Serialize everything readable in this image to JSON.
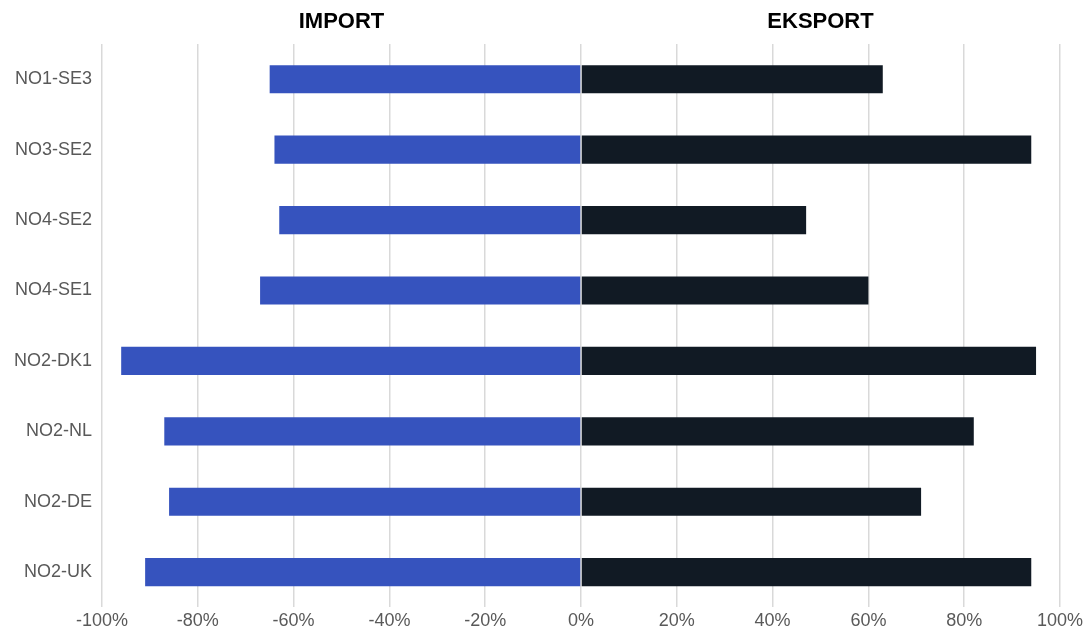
{
  "chart_data": {
    "type": "bar",
    "orientation": "horizontal",
    "stacked": true,
    "categories": [
      "NO1-SE3",
      "NO3-SE2",
      "NO4-SE2",
      "NO4-SE1",
      "NO2-DK1",
      "NO2-NL",
      "NO2-DE",
      "NO2-UK"
    ],
    "series": [
      {
        "name": "IMPORT",
        "color": "#3653be",
        "values": [
          -65,
          -64,
          -63,
          -67,
          -96,
          -87,
          -86,
          -91
        ]
      },
      {
        "name": "EKSPORT",
        "color": "#111a24",
        "values": [
          63,
          94,
          47,
          60,
          95,
          82,
          71,
          94
        ]
      }
    ],
    "xlim": [
      -100,
      100
    ],
    "xticks": [
      {
        "value": -100,
        "label": "-100%"
      },
      {
        "value": -80,
        "label": "-80%"
      },
      {
        "value": -60,
        "label": "-60%"
      },
      {
        "value": -40,
        "label": "-40%"
      },
      {
        "value": -20,
        "label": "-20%"
      },
      {
        "value": 0,
        "label": "0%"
      },
      {
        "value": 20,
        "label": "20%"
      },
      {
        "value": 40,
        "label": "40%"
      },
      {
        "value": 60,
        "label": "60%"
      },
      {
        "value": 80,
        "label": "80%"
      },
      {
        "value": 100,
        "label": "100%"
      }
    ],
    "grid": "x",
    "legend": false
  }
}
